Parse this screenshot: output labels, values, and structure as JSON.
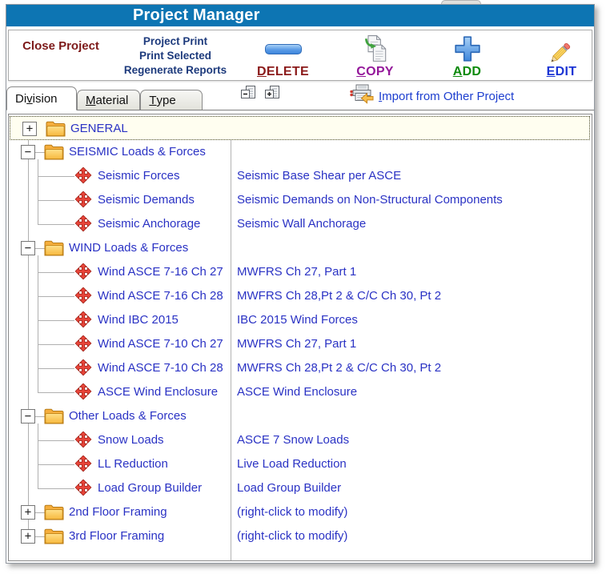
{
  "window": {
    "title": "Project Manager"
  },
  "toolbar": {
    "close_button": {
      "label": "Close Project"
    },
    "print_links": [
      "Project Print",
      "Print Selected",
      "Regenerate Reports"
    ],
    "buttons": [
      {
        "id": "delete",
        "label": "DELETE",
        "mnemonic": 0,
        "color": "#8b1a1a",
        "icon": "minus-bar-icon"
      },
      {
        "id": "copy",
        "label": "COPY",
        "mnemonic": 0,
        "color": "#94189a",
        "icon": "copy-pages-icon"
      },
      {
        "id": "add",
        "label": "ADD",
        "mnemonic": 0,
        "color": "#0b8a0b",
        "icon": "plus-icon"
      },
      {
        "id": "edit",
        "label": "EDIT",
        "mnemonic": 0,
        "color": "#1c35d4",
        "icon": "pencil-icon"
      }
    ]
  },
  "tabs": [
    {
      "id": "division",
      "label": "Division",
      "mnemonic": 2,
      "active": true
    },
    {
      "id": "material",
      "label": "Material",
      "mnemonic": 0,
      "active": false
    },
    {
      "id": "type",
      "label": "Type",
      "mnemonic": 0,
      "active": false
    }
  ],
  "tree_tools": {
    "import_link": {
      "label": "Import from Other Project",
      "mnemonic": 0
    }
  },
  "glyphs": {
    "plus": "+",
    "minus": "−"
  },
  "colors": {
    "titlebar": "#0d75b3",
    "tree_text": "#2a32c4",
    "import_blue": "#1d3ecf"
  },
  "tree": {
    "rows": [
      {
        "level": 0,
        "expander": "plus",
        "icon": "folder-icon",
        "label": "GENERAL",
        "description": "",
        "selected": true
      },
      {
        "level": 0,
        "expander": "minus",
        "icon": "folder-icon",
        "label": "SEISMIC Loads & Forces",
        "description": ""
      },
      {
        "level": 1,
        "icon": "move-arrows-icon",
        "label": "Seismic Forces",
        "description": "Seismic Base Shear per ASCE"
      },
      {
        "level": 1,
        "icon": "move-arrows-icon",
        "label": "Seismic Demands",
        "description": "Seismic Demands on Non-Structural Components"
      },
      {
        "level": 1,
        "icon": "move-arrows-icon",
        "label": "Seismic Anchorage",
        "description": "Seismic Wall Anchorage"
      },
      {
        "level": 0,
        "expander": "minus",
        "icon": "folder-icon",
        "label": "WIND Loads & Forces",
        "description": ""
      },
      {
        "level": 1,
        "icon": "move-arrows-icon",
        "label": "Wind ASCE 7-16 Ch 27",
        "description": "MWFRS Ch 27, Part 1"
      },
      {
        "level": 1,
        "icon": "move-arrows-icon",
        "label": "Wind ASCE 7-16 Ch 28",
        "description": "MWFRS Ch 28,Pt 2 & C/C Ch 30, Pt 2"
      },
      {
        "level": 1,
        "icon": "move-arrows-icon",
        "label": "Wind IBC 2015",
        "description": "IBC 2015 Wind Forces"
      },
      {
        "level": 1,
        "icon": "move-arrows-icon",
        "label": "Wind ASCE 7-10 Ch 27",
        "description": "MWFRS Ch 27, Part 1"
      },
      {
        "level": 1,
        "icon": "move-arrows-icon",
        "label": "Wind ASCE 7-10 Ch 28",
        "description": "MWFRS Ch 28,Pt 2 & C/C Ch 30, Pt 2"
      },
      {
        "level": 1,
        "icon": "move-arrows-icon",
        "label": "ASCE Wind Enclosure",
        "description": "ASCE Wind Enclosure"
      },
      {
        "level": 0,
        "expander": "minus",
        "icon": "folder-icon",
        "label": "Other Loads & Forces",
        "description": ""
      },
      {
        "level": 1,
        "icon": "move-arrows-icon",
        "label": "Snow Loads",
        "description": "ASCE 7 Snow Loads"
      },
      {
        "level": 1,
        "icon": "move-arrows-icon",
        "label": "LL Reduction",
        "description": "Live Load Reduction"
      },
      {
        "level": 1,
        "icon": "move-arrows-icon",
        "label": "Load Group Builder",
        "description": "Load Group Builder"
      },
      {
        "level": 0,
        "expander": "plus",
        "icon": "folder-icon",
        "label": "2nd Floor Framing",
        "description": "(right-click to modify)"
      },
      {
        "level": 0,
        "expander": "plus",
        "icon": "folder-icon",
        "label": "3rd Floor Framing",
        "description": "(right-click to modify)"
      }
    ]
  }
}
